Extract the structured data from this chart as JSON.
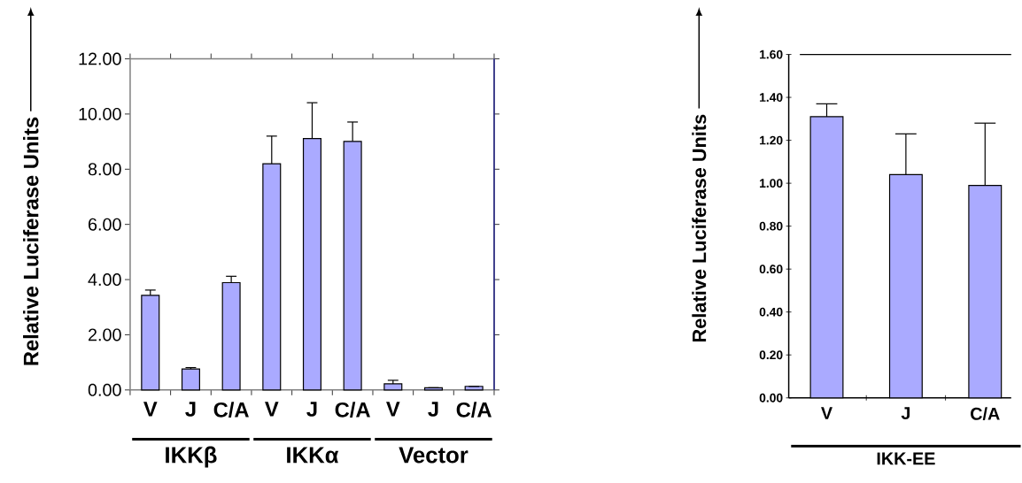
{
  "chart_data": [
    {
      "type": "bar",
      "ylabel": "Relative Luciferase Units",
      "categories": [
        "V",
        "J",
        "C/A",
        "V",
        "J",
        "C/A",
        "V",
        "J",
        "C/A"
      ],
      "values": [
        3.43,
        0.76,
        3.89,
        8.2,
        9.11,
        9.01,
        0.22,
        0.08,
        0.13
      ],
      "errors": [
        0.19,
        0.05,
        0.23,
        1.0,
        1.3,
        0.7,
        0.13,
        null,
        null
      ],
      "color": "#aaaaff",
      "ylim": [
        0,
        12
      ],
      "yticks": [
        {
          "value": 0,
          "label": "0.00"
        },
        {
          "value": 2,
          "label": "2.00"
        },
        {
          "value": 4,
          "label": "4.00"
        },
        {
          "value": 6,
          "label": "6.00"
        },
        {
          "value": 8,
          "label": "8.00"
        },
        {
          "value": 10,
          "label": "10.00"
        },
        {
          "value": 12,
          "label": "12.00"
        }
      ],
      "annotations": [
        "IKKβ",
        "IKKα",
        "Vector"
      ]
    },
    {
      "type": "bar",
      "ylabel": "Relative Luciferase Units",
      "categories": [
        "V",
        "J",
        "C/A"
      ],
      "values": [
        1.31,
        1.04,
        0.99
      ],
      "errors": [
        0.06,
        0.19,
        0.29
      ],
      "color": "#aaaaff",
      "ylim": [
        0,
        1.6
      ],
      "yticks": [
        {
          "value": 0,
          "label": "0.00"
        },
        {
          "value": 0.2,
          "label": "0.20"
        },
        {
          "value": 0.4,
          "label": "0.40"
        },
        {
          "value": 0.6,
          "label": "0.60"
        },
        {
          "value": 0.8,
          "label": "0.80"
        },
        {
          "value": 1.0,
          "label": "1.00"
        },
        {
          "value": 1.2,
          "label": "1.20"
        },
        {
          "value": 1.4,
          "label": "1.40"
        },
        {
          "value": 1.6,
          "label": "1.60"
        }
      ],
      "annotations": [
        "IKK-EE"
      ]
    }
  ]
}
